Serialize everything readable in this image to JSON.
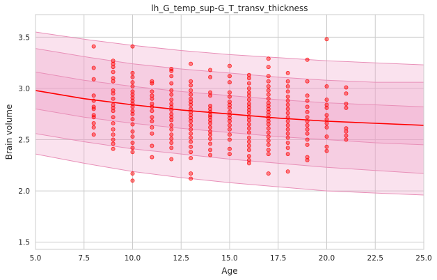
{
  "chart_data": {
    "type": "scatter",
    "title": "lh_G_temp_sup-G_T_transv_thickness",
    "xlabel": "Age",
    "ylabel": "Brain volume",
    "xlim": [
      5.0,
      25.0
    ],
    "ylim": [
      1.43,
      3.72
    ],
    "x_ticks": [
      5.0,
      7.5,
      10.0,
      12.5,
      15.0,
      17.5,
      20.0,
      22.5,
      25.0
    ],
    "x_tick_labels": [
      "5.0",
      "7.5",
      "10.0",
      "12.5",
      "15.0",
      "17.5",
      "20.0",
      "22.5",
      "25.0"
    ],
    "y_ticks": [
      1.5,
      2.0,
      2.5,
      3.0,
      3.5
    ],
    "y_tick_labels": [
      "1.5",
      "2.0",
      "2.5",
      "3.0",
      "3.5"
    ],
    "grid": true,
    "colors": {
      "points": "#ff0000",
      "mean_line": "#ff0000",
      "band": "#f0a0c8",
      "band_edge": "#e890b8",
      "grid": "#cccccc",
      "axis": "#cccccc"
    },
    "curves": {
      "x": [
        5,
        7.5,
        10,
        12.5,
        15,
        17.5,
        20,
        22.5,
        25
      ],
      "mean": [
        2.98,
        2.9,
        2.84,
        2.79,
        2.75,
        2.71,
        2.68,
        2.66,
        2.64
      ],
      "band_1_lower": [
        2.8,
        2.72,
        2.66,
        2.61,
        2.57,
        2.53,
        2.5,
        2.47,
        2.45
      ],
      "band_1_upper": [
        3.16,
        3.08,
        3.02,
        2.97,
        2.93,
        2.89,
        2.86,
        2.84,
        2.82
      ],
      "band_2_lower": [
        2.56,
        2.48,
        2.41,
        2.36,
        2.31,
        2.27,
        2.23,
        2.2,
        2.17
      ],
      "band_2_upper": [
        3.39,
        3.31,
        3.24,
        3.19,
        3.15,
        3.11,
        3.08,
        3.06,
        3.06
      ],
      "band_3_lower": [
        2.36,
        2.27,
        2.19,
        2.13,
        2.08,
        2.04,
        2.0,
        1.98,
        1.96
      ],
      "band_3_upper": [
        3.55,
        3.48,
        3.42,
        3.37,
        3.33,
        3.3,
        3.27,
        3.25,
        3.23
      ]
    },
    "points": [
      [
        8,
        3.41
      ],
      [
        8,
        3.2
      ],
      [
        8,
        3.09
      ],
      [
        8,
        2.93
      ],
      [
        8,
        2.88
      ],
      [
        8,
        2.82
      ],
      [
        8,
        2.8
      ],
      [
        8,
        2.74
      ],
      [
        8,
        2.72
      ],
      [
        8,
        2.66
      ],
      [
        8,
        2.62
      ],
      [
        8,
        2.55
      ],
      [
        9,
        3.27
      ],
      [
        9,
        3.24
      ],
      [
        9,
        3.21
      ],
      [
        9,
        3.16
      ],
      [
        9,
        3.1
      ],
      [
        9,
        3.07
      ],
      [
        9,
        2.98
      ],
      [
        9,
        2.95
      ],
      [
        9,
        2.9
      ],
      [
        9,
        2.84
      ],
      [
        9,
        2.81
      ],
      [
        9,
        2.78
      ],
      [
        9,
        2.72
      ],
      [
        9,
        2.66
      ],
      [
        9,
        2.6
      ],
      [
        9,
        2.55
      ],
      [
        9,
        2.5
      ],
      [
        9,
        2.46
      ],
      [
        9,
        2.41
      ],
      [
        10,
        3.41
      ],
      [
        10,
        3.15
      ],
      [
        10,
        3.11
      ],
      [
        10,
        3.06
      ],
      [
        10,
        3.02
      ],
      [
        10,
        2.97
      ],
      [
        10,
        2.94
      ],
      [
        10,
        2.91
      ],
      [
        10,
        2.88
      ],
      [
        10,
        2.85
      ],
      [
        10,
        2.82
      ],
      [
        10,
        2.78
      ],
      [
        10,
        2.75
      ],
      [
        10,
        2.7
      ],
      [
        10,
        2.65
      ],
      [
        10,
        2.58
      ],
      [
        10,
        2.53
      ],
      [
        10,
        2.47
      ],
      [
        10,
        2.42
      ],
      [
        10,
        2.38
      ],
      [
        10,
        2.17
      ],
      [
        10,
        2.1
      ],
      [
        11,
        3.07
      ],
      [
        11,
        3.05
      ],
      [
        11,
        2.97
      ],
      [
        11,
        2.93
      ],
      [
        11,
        2.9
      ],
      [
        11,
        2.85
      ],
      [
        11,
        2.82
      ],
      [
        11,
        2.78
      ],
      [
        11,
        2.72
      ],
      [
        11,
        2.68
      ],
      [
        11,
        2.62
      ],
      [
        11,
        2.56
      ],
      [
        11,
        2.44
      ],
      [
        11,
        2.33
      ],
      [
        12,
        3.19
      ],
      [
        12,
        3.17
      ],
      [
        12,
        3.12
      ],
      [
        12,
        3.05
      ],
      [
        12,
        2.98
      ],
      [
        12,
        2.94
      ],
      [
        12,
        2.89
      ],
      [
        12,
        2.85
      ],
      [
        12,
        2.82
      ],
      [
        12,
        2.79
      ],
      [
        12,
        2.75
      ],
      [
        12,
        2.72
      ],
      [
        12,
        2.69
      ],
      [
        12,
        2.64
      ],
      [
        12,
        2.6
      ],
      [
        12,
        2.55
      ],
      [
        12,
        2.51
      ],
      [
        12,
        2.47
      ],
      [
        12,
        2.42
      ],
      [
        12,
        2.31
      ],
      [
        13,
        3.24
      ],
      [
        13,
        3.07
      ],
      [
        13,
        3.03
      ],
      [
        13,
        2.98
      ],
      [
        13,
        2.94
      ],
      [
        13,
        2.9
      ],
      [
        13,
        2.87
      ],
      [
        13,
        2.84
      ],
      [
        13,
        2.8
      ],
      [
        13,
        2.77
      ],
      [
        13,
        2.74
      ],
      [
        13,
        2.71
      ],
      [
        13,
        2.68
      ],
      [
        13,
        2.64
      ],
      [
        13,
        2.6
      ],
      [
        13,
        2.56
      ],
      [
        13,
        2.52
      ],
      [
        13,
        2.48
      ],
      [
        13,
        2.43
      ],
      [
        13,
        2.38
      ],
      [
        13,
        2.32
      ],
      [
        13,
        2.17
      ],
      [
        13,
        2.12
      ],
      [
        14,
        3.18
      ],
      [
        14,
        3.11
      ],
      [
        14,
        2.96
      ],
      [
        14,
        2.93
      ],
      [
        14,
        2.83
      ],
      [
        14,
        2.8
      ],
      [
        14,
        2.77
      ],
      [
        14,
        2.74
      ],
      [
        14,
        2.72
      ],
      [
        14,
        2.69
      ],
      [
        14,
        2.66
      ],
      [
        14,
        2.62
      ],
      [
        14,
        2.58
      ],
      [
        14,
        2.55
      ],
      [
        14,
        2.51
      ],
      [
        14,
        2.46
      ],
      [
        14,
        2.4
      ],
      [
        14,
        2.35
      ],
      [
        15,
        3.22
      ],
      [
        15,
        3.12
      ],
      [
        15,
        3.06
      ],
      [
        15,
        2.96
      ],
      [
        15,
        2.92
      ],
      [
        15,
        2.87
      ],
      [
        15,
        2.84
      ],
      [
        15,
        2.81
      ],
      [
        15,
        2.77
      ],
      [
        15,
        2.74
      ],
      [
        15,
        2.71
      ],
      [
        15,
        2.68
      ],
      [
        15,
        2.64
      ],
      [
        15,
        2.6
      ],
      [
        15,
        2.55
      ],
      [
        15,
        2.5
      ],
      [
        15,
        2.41
      ],
      [
        15,
        2.36
      ],
      [
        16,
        3.13
      ],
      [
        16,
        3.1
      ],
      [
        16,
        3.05
      ],
      [
        16,
        3.0
      ],
      [
        16,
        2.96
      ],
      [
        16,
        2.93
      ],
      [
        16,
        2.89
      ],
      [
        16,
        2.85
      ],
      [
        16,
        2.82
      ],
      [
        16,
        2.79
      ],
      [
        16,
        2.76
      ],
      [
        16,
        2.72
      ],
      [
        16,
        2.69
      ],
      [
        16,
        2.65
      ],
      [
        16,
        2.61
      ],
      [
        16,
        2.57
      ],
      [
        16,
        2.52
      ],
      [
        16,
        2.48
      ],
      [
        16,
        2.44
      ],
      [
        16,
        2.4
      ],
      [
        16,
        2.34
      ],
      [
        16,
        2.3
      ],
      [
        16,
        2.27
      ],
      [
        17,
        3.29
      ],
      [
        17,
        3.21
      ],
      [
        17,
        3.12
      ],
      [
        17,
        3.07
      ],
      [
        17,
        3.02
      ],
      [
        17,
        2.98
      ],
      [
        17,
        2.94
      ],
      [
        17,
        2.9
      ],
      [
        17,
        2.86
      ],
      [
        17,
        2.83
      ],
      [
        17,
        2.8
      ],
      [
        17,
        2.77
      ],
      [
        17,
        2.74
      ],
      [
        17,
        2.71
      ],
      [
        17,
        2.68
      ],
      [
        17,
        2.65
      ],
      [
        17,
        2.61
      ],
      [
        17,
        2.57
      ],
      [
        17,
        2.53
      ],
      [
        17,
        2.49
      ],
      [
        17,
        2.45
      ],
      [
        17,
        2.4
      ],
      [
        17,
        2.36
      ],
      [
        17,
        2.17
      ],
      [
        18,
        3.15
      ],
      [
        18,
        3.07
      ],
      [
        18,
        3.02
      ],
      [
        18,
        2.97
      ],
      [
        18,
        2.92
      ],
      [
        18,
        2.88
      ],
      [
        18,
        2.84
      ],
      [
        18,
        2.8
      ],
      [
        18,
        2.76
      ],
      [
        18,
        2.72
      ],
      [
        18,
        2.68
      ],
      [
        18,
        2.64
      ],
      [
        18,
        2.6
      ],
      [
        18,
        2.56
      ],
      [
        18,
        2.52
      ],
      [
        18,
        2.47
      ],
      [
        18,
        2.42
      ],
      [
        18,
        2.36
      ],
      [
        18,
        2.19
      ],
      [
        19,
        3.28
      ],
      [
        19,
        3.07
      ],
      [
        19,
        2.93
      ],
      [
        19,
        2.88
      ],
      [
        19,
        2.82
      ],
      [
        19,
        2.77
      ],
      [
        19,
        2.72
      ],
      [
        19,
        2.68
      ],
      [
        19,
        2.64
      ],
      [
        19,
        2.6
      ],
      [
        19,
        2.56
      ],
      [
        19,
        2.5
      ],
      [
        19,
        2.45
      ],
      [
        19,
        2.33
      ],
      [
        19,
        2.3
      ],
      [
        20,
        3.48
      ],
      [
        20,
        3.02
      ],
      [
        20,
        2.89
      ],
      [
        20,
        2.84
      ],
      [
        20,
        2.81
      ],
      [
        20,
        2.74
      ],
      [
        20,
        2.7
      ],
      [
        20,
        2.66
      ],
      [
        20,
        2.62
      ],
      [
        20,
        2.53
      ],
      [
        20,
        2.43
      ],
      [
        20,
        2.39
      ],
      [
        21,
        3.01
      ],
      [
        21,
        2.95
      ],
      [
        21,
        2.85
      ],
      [
        21,
        2.81
      ],
      [
        21,
        2.61
      ],
      [
        21,
        2.58
      ],
      [
        21,
        2.54
      ],
      [
        21,
        2.5
      ]
    ]
  }
}
